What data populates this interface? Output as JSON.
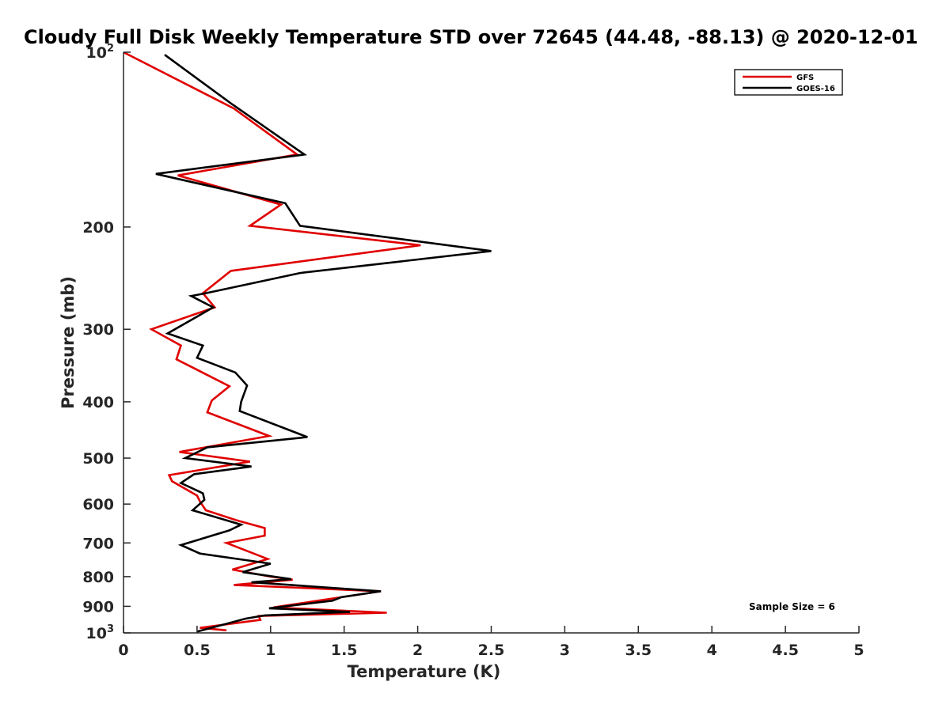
{
  "chart_data": {
    "type": "line",
    "title": "Cloudy Full Disk Weekly Temperature STD over 72645 (44.48, -88.13) @ 2020-12-01",
    "xlabel": "Temperature (K)",
    "ylabel": "Pressure (mb)",
    "xlim": [
      0,
      5
    ],
    "ylim": [
      100,
      1000
    ],
    "y_scale": "log",
    "y_reversed": true,
    "x_ticks": [
      "0",
      "0.5",
      "1",
      "1.5",
      "2",
      "2.5",
      "3",
      "3.5",
      "4",
      "4.5",
      "5"
    ],
    "y_ticks": [
      {
        "value": 100,
        "label": "10",
        "sup": "2"
      },
      {
        "value": 200,
        "label": "200",
        "sup": ""
      },
      {
        "value": 300,
        "label": "300",
        "sup": ""
      },
      {
        "value": 400,
        "label": "400",
        "sup": ""
      },
      {
        "value": 500,
        "label": "500",
        "sup": ""
      },
      {
        "value": 600,
        "label": "600",
        "sup": ""
      },
      {
        "value": 700,
        "label": "700",
        "sup": ""
      },
      {
        "value": 800,
        "label": "800",
        "sup": ""
      },
      {
        "value": 900,
        "label": "900",
        "sup": ""
      },
      {
        "value": 1000,
        "label": "10",
        "sup": "3"
      }
    ],
    "grid": false,
    "legend_position": "top-right",
    "annotation": "Sample Size = 6",
    "series": [
      {
        "name": "GFS",
        "color": "#e00000",
        "points": [
          [
            0.0,
            100
          ],
          [
            0.75,
            125
          ],
          [
            1.18,
            150
          ],
          [
            0.37,
            163
          ],
          [
            1.07,
            183
          ],
          [
            0.86,
            199
          ],
          [
            2.02,
            215
          ],
          [
            0.73,
            238
          ],
          [
            0.54,
            260
          ],
          [
            0.62,
            275
          ],
          [
            0.19,
            300
          ],
          [
            0.39,
            320
          ],
          [
            0.36,
            338
          ],
          [
            0.72,
            376
          ],
          [
            0.6,
            398
          ],
          [
            0.57,
            417
          ],
          [
            0.99,
            458
          ],
          [
            0.38,
            488
          ],
          [
            0.86,
            507
          ],
          [
            0.31,
            535
          ],
          [
            0.33,
            548
          ],
          [
            0.5,
            580
          ],
          [
            0.52,
            594
          ],
          [
            0.56,
            615
          ],
          [
            0.77,
            640
          ],
          [
            0.96,
            660
          ],
          [
            0.96,
            680
          ],
          [
            0.7,
            700
          ],
          [
            0.98,
            746
          ],
          [
            0.74,
            778
          ],
          [
            1.0,
            800
          ],
          [
            1.15,
            810
          ],
          [
            0.75,
            827
          ],
          [
            1.75,
            848
          ],
          [
            1.35,
            878
          ],
          [
            1.02,
            904
          ],
          [
            1.79,
            923
          ],
          [
            0.92,
            935
          ],
          [
            0.93,
            950
          ],
          [
            0.52,
            980
          ],
          [
            0.7,
            990
          ]
        ]
      },
      {
        "name": "GOES-16",
        "color": "#000000",
        "points": [
          [
            0.28,
            101
          ],
          [
            0.74,
            123
          ],
          [
            1.23,
            150
          ],
          [
            0.22,
            162
          ],
          [
            1.1,
            182
          ],
          [
            1.2,
            199
          ],
          [
            2.5,
            220
          ],
          [
            1.2,
            240
          ],
          [
            0.56,
            260
          ],
          [
            0.46,
            263
          ],
          [
            0.61,
            275
          ],
          [
            0.3,
            305
          ],
          [
            0.54,
            320
          ],
          [
            0.5,
            336
          ],
          [
            0.76,
            356
          ],
          [
            0.84,
            375
          ],
          [
            0.8,
            400
          ],
          [
            0.79,
            415
          ],
          [
            1.25,
            460
          ],
          [
            0.57,
            479
          ],
          [
            0.42,
            500
          ],
          [
            0.87,
            517
          ],
          [
            0.48,
            533
          ],
          [
            0.39,
            552
          ],
          [
            0.54,
            575
          ],
          [
            0.55,
            590
          ],
          [
            0.47,
            615
          ],
          [
            0.8,
            651
          ],
          [
            0.72,
            666
          ],
          [
            0.39,
            706
          ],
          [
            0.52,
            730
          ],
          [
            1.0,
            760
          ],
          [
            0.81,
            786
          ],
          [
            1.14,
            808
          ],
          [
            0.87,
            818
          ],
          [
            1.75,
            848
          ],
          [
            1.48,
            868
          ],
          [
            1.42,
            880
          ],
          [
            0.99,
            907
          ],
          [
            1.54,
            920
          ],
          [
            0.96,
            933
          ],
          [
            0.83,
            945
          ],
          [
            0.5,
            995
          ]
        ]
      }
    ]
  }
}
